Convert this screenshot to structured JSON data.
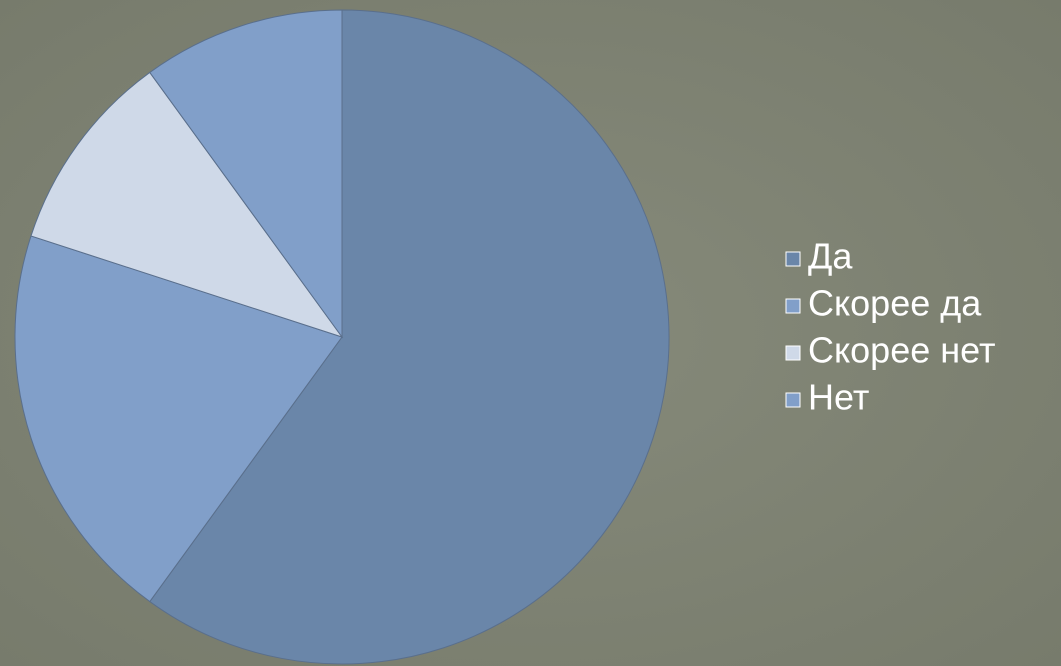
{
  "chart_data": {
    "type": "pie",
    "categories": [
      "Да",
      "Скорее да",
      "Скорее нет",
      "Нет"
    ],
    "values": [
      60,
      20,
      10,
      10
    ],
    "colors": [
      "#6a86a9",
      "#819fc9",
      "#cfd9e8",
      "#819fc9"
    ],
    "legend": "right"
  }
}
